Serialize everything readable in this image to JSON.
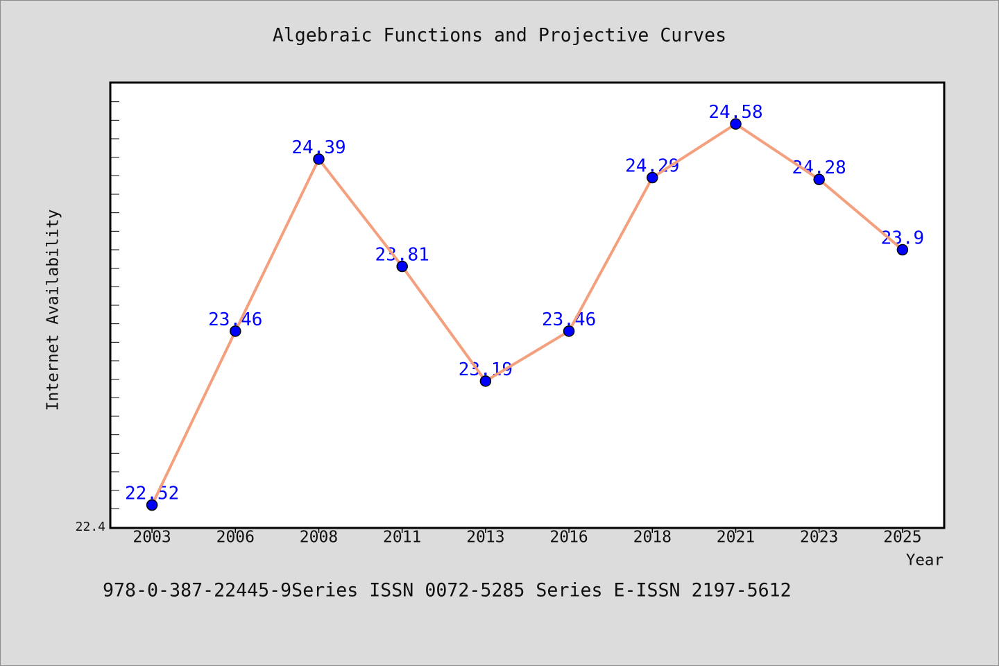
{
  "chart_data": {
    "type": "line",
    "title": "Algebraic Functions and Projective Curves",
    "xlabel": "Year",
    "ylabel": "Internet Availability",
    "categories": [
      "2003",
      "2006",
      "2008",
      "2011",
      "2013",
      "2016",
      "2018",
      "2021",
      "2023",
      "2025"
    ],
    "values": [
      22.52,
      23.46,
      24.39,
      23.81,
      23.19,
      23.46,
      24.29,
      24.58,
      24.28,
      23.9
    ],
    "data_labels": true,
    "ylim": [
      22.4,
      24.8
    ],
    "yticks": [
      22.4
    ],
    "ytick_labels": [
      "22.4"
    ],
    "grid": false,
    "legend": false,
    "annotations": [
      "978-0-387-22445-9Series ISSN 0072-5285 Series E-ISSN 2197-5612"
    ]
  },
  "colors": {
    "background": "#dcdcdc",
    "plot_background": "#ffffff",
    "line": "#f4a07e",
    "marker": "#0000ff",
    "marker_edge": "#000000",
    "data_label": "#0000ff"
  }
}
